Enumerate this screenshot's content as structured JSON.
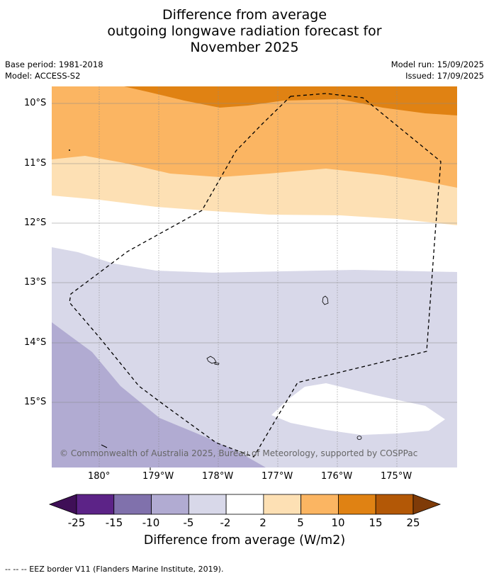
{
  "title": {
    "line1": "Difference from average",
    "line2": "outgoing longwave radiation forecast for",
    "line3": "November 2025"
  },
  "meta": {
    "base_period": "Base period: 1981-2018",
    "model": "Model: ACCESS-S2",
    "model_run": "Model run: 15/09/2025",
    "issued": "Issued: 17/09/2025"
  },
  "axes": {
    "lat_labels": [
      "10°S",
      "11°S",
      "12°S",
      "13°S",
      "14°S",
      "15°S"
    ],
    "lon_labels": [
      "180°",
      "179°W",
      "178°W",
      "177°W",
      "176°W",
      "175°W"
    ]
  },
  "copyright": "© Commonwealth of Australia 2025, Bureau of Meteorology, supported by COSPPac",
  "colorbar": {
    "ticks": [
      "-25",
      "-15",
      "-10",
      "-5",
      "-2",
      "2",
      "5",
      "10",
      "15",
      "25"
    ],
    "colors": [
      "#3f0f57",
      "#5c2387",
      "#8071ac",
      "#b1abd2",
      "#d8d8e9",
      "#ffffff",
      "#fde0b4",
      "#fbb562",
      "#e08213",
      "#b35806",
      "#7f3b08"
    ],
    "title": "Difference from average (W/m2)"
  },
  "footer": "--  --  -- EEZ border V11 (Flanders Marine Institute, 2019)."
}
